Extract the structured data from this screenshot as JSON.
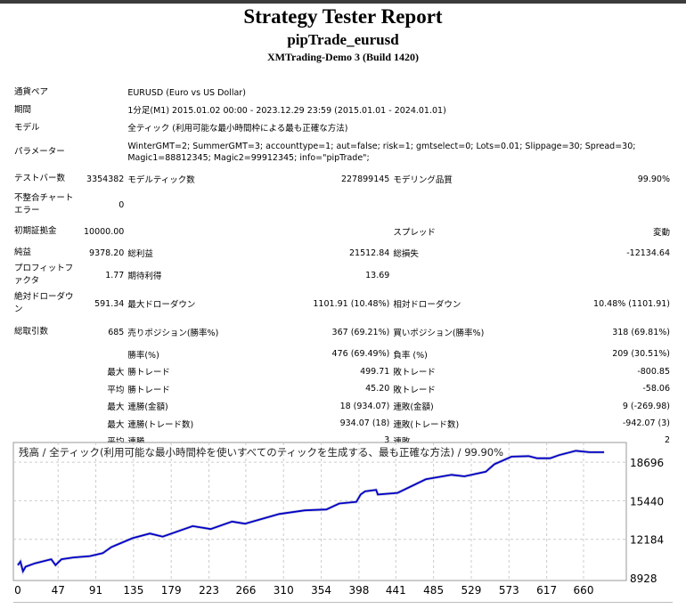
{
  "header": {
    "title": "Strategy Tester Report",
    "expert": "pipTrade_eurusd",
    "server": "XMTrading-Demo 3 (Build 1420)"
  },
  "info": [
    {
      "label": "通貨ペア",
      "value": "EURUSD (Euro vs US Dollar)"
    },
    {
      "label": "期間",
      "value": "1分足(M1) 2015.01.02 00:00 - 2023.12.29 23:59 (2015.01.01 - 2024.01.01)"
    },
    {
      "label": "モデル",
      "value": "全ティック (利用可能な最小時間枠による最も正確な方法)"
    },
    {
      "label": "パラメーター",
      "value": "WinterGMT=2; SummerGMT=3; accounttype=1; aut=false; risk=1; gmtselect=0; Lots=0.01; Slippage=30; Spread=30; Magic1=88812345; Magic2=99912345; info=\"pipTrade\";"
    }
  ],
  "rows": [
    {
      "h": 26,
      "c": [
        "テストバー数",
        "3354382",
        "モデルティック数",
        "227899145",
        "モデリング品質",
        "99.90%"
      ]
    },
    {
      "h": 32,
      "c": [
        "不整合チャートエラー",
        "0",
        "",
        "",
        "",
        ""
      ]
    },
    {
      "h": 28,
      "c": [
        "初期証拠金",
        "10000.00",
        "",
        "",
        "スプレッド",
        "変動"
      ]
    },
    {
      "h": 20,
      "c": [
        "純益",
        "9378.20",
        "総利益",
        "21512.84",
        "総損失",
        "-12134.64"
      ]
    },
    {
      "h": 30,
      "c": [
        "プロフィットファクタ",
        "1.77",
        "期待利得",
        "13.69",
        "",
        ""
      ]
    },
    {
      "h": 34,
      "c": [
        "絶対ドローダウン",
        "591.34",
        "最大ドローダウン",
        "1101.91 (10.48%)",
        "相対ドローダウン",
        "10.48% (1101.91)"
      ]
    },
    {
      "h": 30,
      "c": [
        "総取引数",
        "685",
        "売りポジション(勝率%)",
        "367 (69.21%)",
        "買いポジション(勝率%)",
        "318 (69.81%)"
      ]
    },
    {
      "h": 19,
      "c": [
        "",
        "",
        "勝率(%)",
        "476 (69.49%)",
        "負率 (%)",
        "209 (30.51%)"
      ]
    },
    {
      "h": 20,
      "c": [
        "",
        "最大",
        "勝トレード",
        "499.71",
        "敗トレード",
        "-800.85"
      ]
    },
    {
      "h": 19,
      "c": [
        "",
        "平均",
        "勝トレード",
        "45.20",
        "敗トレード",
        "-58.06"
      ]
    },
    {
      "h": 20,
      "c": [
        "",
        "最大",
        "連勝(金額)",
        "18 (934.07)",
        "連敗(金額)",
        "9 (-269.98)"
      ]
    },
    {
      "h": 19,
      "c": [
        "",
        "最大",
        "連勝(トレード数)",
        "934.07 (18)",
        "連敗(トレード数)",
        "-942.07 (3)"
      ]
    },
    {
      "h": 19,
      "c": [
        "",
        "平均",
        "連勝",
        "3",
        "連敗",
        "2"
      ]
    }
  ],
  "chart_data": {
    "type": "line",
    "title": "残高 / 全ティック(利用可能な最小時間枠を使いすべてのティックを生成する、最も正確な方法) / 99.90%",
    "x_ticks": [
      0,
      47,
      91,
      135,
      179,
      223,
      266,
      310,
      354,
      398,
      441,
      485,
      529,
      573,
      617,
      660
    ],
    "y_ticks": [
      8928,
      12184,
      15440,
      18696
    ],
    "xlim": [
      0,
      685
    ],
    "ylim": [
      8928,
      19800
    ],
    "grid": true,
    "line_color": "#0000c8",
    "series": [
      {
        "x": [
          0,
          3,
          6,
          9,
          20,
          39,
          44,
          51,
          65,
          84,
          99,
          109,
          134,
          154,
          169,
          204,
          225,
          250,
          265,
          280,
          305,
          335,
          360,
          375,
          395,
          400,
          405,
          418,
          420,
          443,
          476,
          506,
          521,
          546,
          556,
          576,
          596,
          606,
          621,
          631,
          651,
          667,
          684
        ],
        "y": [
          9996,
          10300,
          9488,
          9870,
          10150,
          10500,
          10000,
          10500,
          10650,
          10760,
          11010,
          11520,
          12280,
          12670,
          12410,
          13300,
          13050,
          13680,
          13500,
          13810,
          14320,
          14630,
          14700,
          15210,
          15340,
          15970,
          16230,
          16360,
          15970,
          16100,
          17250,
          17630,
          17500,
          17890,
          18520,
          19160,
          19210,
          19030,
          19030,
          19280,
          19660,
          19540,
          19540
        ]
      }
    ]
  }
}
